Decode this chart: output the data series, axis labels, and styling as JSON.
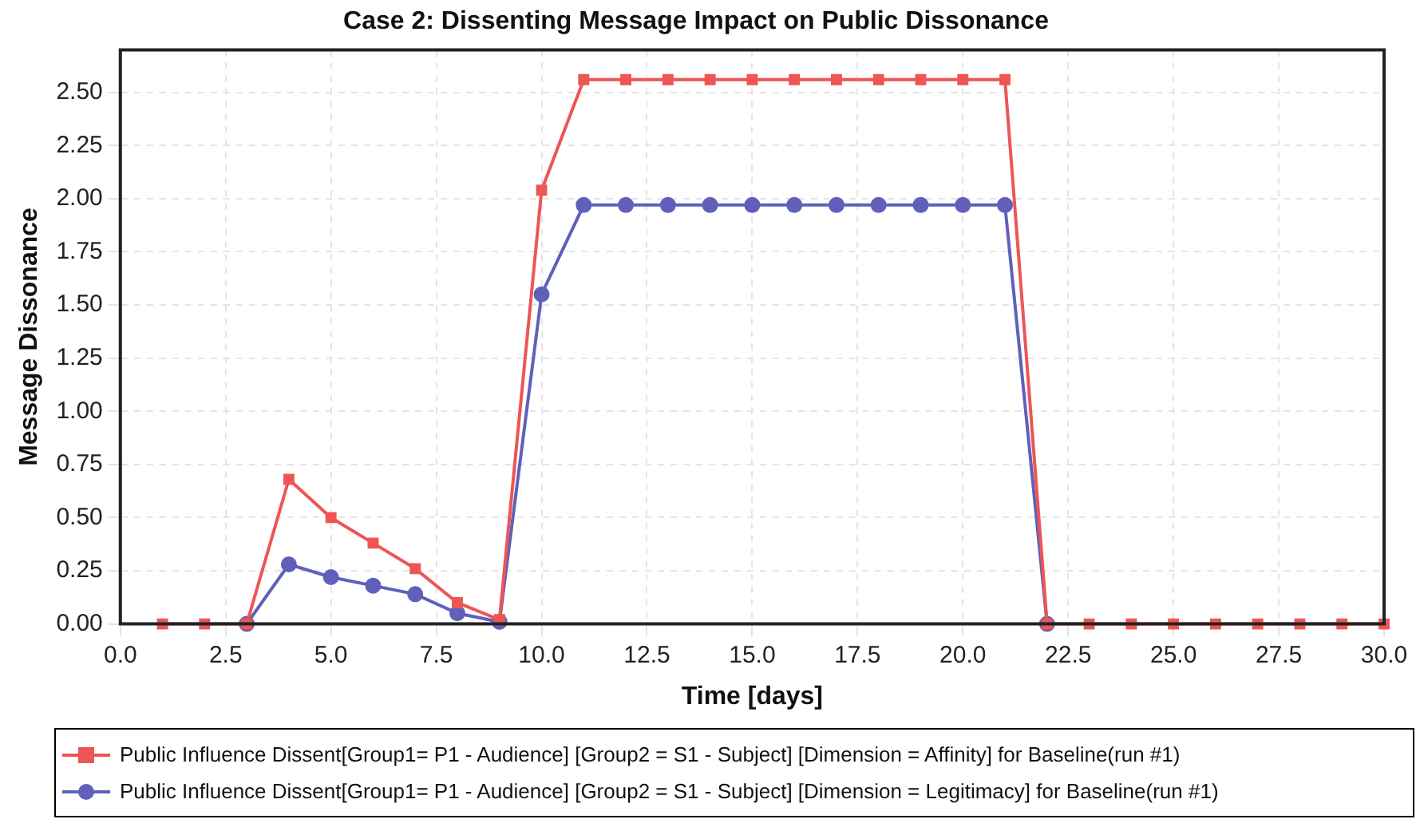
{
  "chart_data": {
    "type": "line",
    "title": "Case 2: Dissenting Message Impact on Public Dissonance",
    "xlabel": "Time [days]",
    "ylabel": "Message Dissonance",
    "x": [
      1,
      2,
      3,
      4,
      5,
      6,
      7,
      8,
      9,
      10,
      11,
      12,
      13,
      14,
      15,
      16,
      17,
      18,
      19,
      20,
      21,
      22,
      23,
      24,
      25,
      26,
      27,
      28,
      29,
      30
    ],
    "series": [
      {
        "name": "Public Influence Dissent[Group1= P1 - Audience] [Group2 = S1 - Subject] [Dimension = Affinity] for Baseline(run #1)",
        "color": "#ee5555",
        "marker": "square",
        "values": [
          0,
          0,
          0,
          0.68,
          0.5,
          0.38,
          0.26,
          0.1,
          0.02,
          2.04,
          2.56,
          2.56,
          2.56,
          2.56,
          2.56,
          2.56,
          2.56,
          2.56,
          2.56,
          2.56,
          2.56,
          0,
          0,
          0,
          0,
          0,
          0,
          0,
          0,
          0
        ]
      },
      {
        "name": "Public Influence Dissent[Group1= P1 - Audience] [Group2 = S1 - Subject] [Dimension = Legitimacy] for Baseline(run #1)",
        "color": "#6060bb",
        "marker": "circle",
        "values": [
          null,
          null,
          0,
          0.28,
          0.22,
          0.18,
          0.14,
          0.05,
          0.01,
          1.55,
          1.97,
          1.97,
          1.97,
          1.97,
          1.97,
          1.97,
          1.97,
          1.97,
          1.97,
          1.97,
          1.97,
          0,
          null,
          null,
          null,
          null,
          null,
          null,
          null,
          null
        ]
      }
    ],
    "xlim": [
      0,
      30
    ],
    "xticks": [
      {
        "value": 0,
        "label": "0.0"
      },
      {
        "value": 2.5,
        "label": "2.5"
      },
      {
        "value": 5,
        "label": "5.0"
      },
      {
        "value": 7.5,
        "label": "7.5"
      },
      {
        "value": 10,
        "label": "10.0"
      },
      {
        "value": 12.5,
        "label": "12.5"
      },
      {
        "value": 15,
        "label": "15.0"
      },
      {
        "value": 17.5,
        "label": "17.5"
      },
      {
        "value": 20,
        "label": "20.0"
      },
      {
        "value": 22.5,
        "label": "22.5"
      },
      {
        "value": 25,
        "label": "25.0"
      },
      {
        "value": 27.5,
        "label": "27.5"
      },
      {
        "value": 30,
        "label": "30.0"
      }
    ],
    "ylim": [
      0,
      2.7
    ],
    "yticks": [
      {
        "value": 0,
        "label": "0.00"
      },
      {
        "value": 0.25,
        "label": "0.25"
      },
      {
        "value": 0.5,
        "label": "0.50"
      },
      {
        "value": 0.75,
        "label": "0.75"
      },
      {
        "value": 1,
        "label": "1.00"
      },
      {
        "value": 1.25,
        "label": "1.25"
      },
      {
        "value": 1.5,
        "label": "1.50"
      },
      {
        "value": 1.75,
        "label": "1.75"
      },
      {
        "value": 2,
        "label": "2.00"
      },
      {
        "value": 2.25,
        "label": "2.25"
      },
      {
        "value": 2.5,
        "label": "2.50"
      }
    ],
    "grid": true,
    "legend": "bottom",
    "line_style": "solid"
  }
}
